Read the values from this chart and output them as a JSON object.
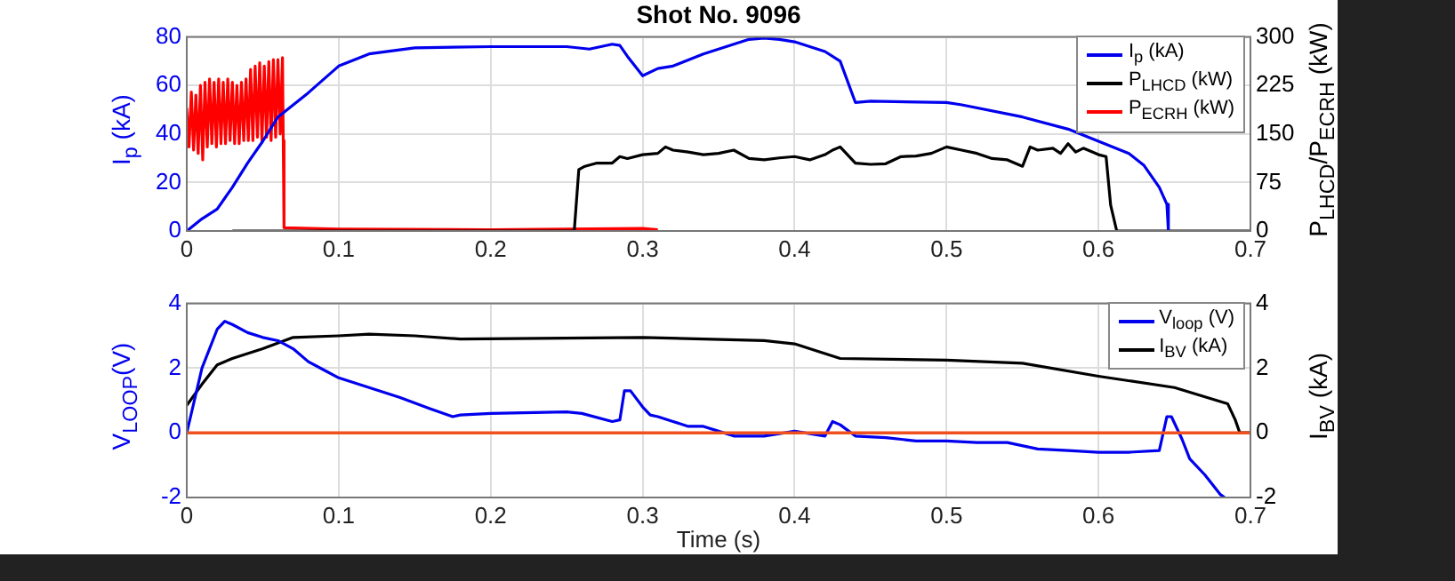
{
  "chart_data": [
    {
      "type": "line",
      "title": "Shot No. 9096",
      "ylabel": "I$_{p}$ (kA)",
      "y2label": "P$_{LHCD}$/P$_{ECRH}$ (kW)",
      "xlim": [
        0,
        0.7
      ],
      "xticks": [
        0,
        0.1,
        0.2,
        0.3,
        0.4,
        0.5,
        0.6,
        0.7
      ],
      "ylim": [
        0,
        80
      ],
      "yticks": [
        0,
        20,
        40,
        60,
        80
      ],
      "y2lim": [
        0,
        300
      ],
      "y2ticks": [
        0,
        75,
        150,
        225,
        300
      ],
      "grid": true,
      "legend": "top right",
      "series": [
        {
          "name": "I$_{p}$ (kA)",
          "color": "#0000ee",
          "x": [
            0,
            0.01,
            0.02,
            0.03,
            0.04,
            0.05,
            0.06,
            0.08,
            0.1,
            0.12,
            0.15,
            0.2,
            0.25,
            0.265,
            0.28,
            0.285,
            0.29,
            0.3,
            0.31,
            0.32,
            0.34,
            0.36,
            0.37,
            0.38,
            0.39,
            0.4,
            0.42,
            0.43,
            0.44,
            0.45,
            0.5,
            0.51,
            0.55,
            0.58,
            0.6,
            0.62,
            0.63,
            0.64,
            0.645,
            0.646
          ],
          "values": [
            0,
            5,
            9,
            18,
            28,
            37,
            47,
            57,
            68,
            73,
            75.5,
            76,
            76,
            75,
            77,
            76.5,
            72,
            64,
            67,
            68,
            73,
            77,
            79,
            79.5,
            79,
            78,
            74,
            70,
            53,
            53.5,
            53,
            52,
            47,
            42,
            37,
            32,
            27,
            18,
            11,
            0
          ]
        },
        {
          "name": "P$_{LHCD}$ (kW)",
          "color": "#000000",
          "axis": "y2",
          "x": [
            0.03,
            0.255,
            0.258,
            0.262,
            0.27,
            0.28,
            0.285,
            0.29,
            0.3,
            0.31,
            0.315,
            0.32,
            0.33,
            0.34,
            0.35,
            0.36,
            0.37,
            0.38,
            0.39,
            0.4,
            0.41,
            0.42,
            0.425,
            0.43,
            0.44,
            0.45,
            0.46,
            0.47,
            0.48,
            0.49,
            0.5,
            0.51,
            0.52,
            0.53,
            0.54,
            0.55,
            0.555,
            0.56,
            0.57,
            0.575,
            0.58,
            0.585,
            0.59,
            0.6,
            0.605,
            0.608,
            0.612,
            0.7
          ],
          "values": [
            0,
            0,
            95,
            100,
            105,
            105,
            115,
            112,
            118,
            120,
            130,
            125,
            122,
            118,
            120,
            125,
            112,
            110,
            113,
            115,
            110,
            118,
            125,
            130,
            105,
            103,
            104,
            115,
            116,
            120,
            130,
            125,
            120,
            112,
            110,
            100,
            130,
            125,
            128,
            120,
            135,
            122,
            128,
            118,
            115,
            40,
            0,
            0
          ]
        },
        {
          "name": "P$_{ECRH}$ (kW)",
          "color": "#ff0000",
          "axis": "y2",
          "x": [
            0,
            0.0015,
            0.003,
            0.0045,
            0.006,
            0.0075,
            0.009,
            0.0105,
            0.012,
            0.0135,
            0.015,
            0.0165,
            0.018,
            0.0195,
            0.021,
            0.0225,
            0.024,
            0.0255,
            0.027,
            0.0285,
            0.03,
            0.0315,
            0.033,
            0.0345,
            0.036,
            0.0375,
            0.039,
            0.0405,
            0.042,
            0.0435,
            0.045,
            0.0465,
            0.048,
            0.0495,
            0.051,
            0.0525,
            0.054,
            0.0555,
            0.057,
            0.0585,
            0.06,
            0.0615,
            0.063,
            0.0635,
            0.064,
            0.1,
            0.2,
            0.3,
            0.31
          ],
          "values": [
            190,
            130,
            215,
            125,
            210,
            120,
            225,
            110,
            230,
            130,
            235,
            135,
            230,
            130,
            235,
            135,
            230,
            135,
            235,
            140,
            230,
            135,
            225,
            135,
            230,
            140,
            235,
            140,
            250,
            140,
            255,
            145,
            260,
            140,
            255,
            145,
            262,
            140,
            265,
            145,
            265,
            150,
            268,
            140,
            5,
            3,
            2,
            4,
            2
          ]
        }
      ]
    },
    {
      "type": "line",
      "xlabel": "Time (s)",
      "ylabel": "V$_{LOOP}$(V)",
      "y2label": "I$_{BV}$ (kA)",
      "xlim": [
        0,
        0.7
      ],
      "xticks": [
        0,
        0.1,
        0.2,
        0.3,
        0.4,
        0.5,
        0.6,
        0.7
      ],
      "ylim": [
        -2,
        4
      ],
      "yticks": [
        -2,
        0,
        2,
        4
      ],
      "y2lim": [
        -2,
        4
      ],
      "y2ticks": [
        -2,
        0,
        2,
        4
      ],
      "grid": true,
      "legend": "top right",
      "ref_lines": [
        {
          "axis": "y",
          "value": 0,
          "color": "#f05020"
        }
      ],
      "series": [
        {
          "name": "V$_{loop}$ (V)",
          "color": "#0000ee",
          "x": [
            0,
            0.01,
            0.02,
            0.025,
            0.03,
            0.04,
            0.05,
            0.06,
            0.07,
            0.08,
            0.09,
            0.1,
            0.12,
            0.14,
            0.16,
            0.175,
            0.18,
            0.2,
            0.25,
            0.26,
            0.28,
            0.285,
            0.288,
            0.292,
            0.3,
            0.305,
            0.31,
            0.32,
            0.33,
            0.34,
            0.35,
            0.36,
            0.38,
            0.4,
            0.42,
            0.425,
            0.43,
            0.44,
            0.46,
            0.48,
            0.5,
            0.52,
            0.54,
            0.56,
            0.58,
            0.6,
            0.62,
            0.64,
            0.645,
            0.648,
            0.655,
            0.66,
            0.67,
            0.68,
            0.683
          ],
          "values": [
            0,
            2,
            3.2,
            3.45,
            3.35,
            3.1,
            2.95,
            2.85,
            2.6,
            2.2,
            1.95,
            1.7,
            1.4,
            1.1,
            0.75,
            0.5,
            0.55,
            0.6,
            0.65,
            0.6,
            0.35,
            0.4,
            1.3,
            1.3,
            0.8,
            0.55,
            0.5,
            0.35,
            0.2,
            0.2,
            0.05,
            -0.1,
            -0.1,
            0.05,
            -0.1,
            0.35,
            0.25,
            -0.1,
            -0.15,
            -0.25,
            -0.25,
            -0.3,
            -0.3,
            -0.5,
            -0.55,
            -0.6,
            -0.6,
            -0.55,
            0.5,
            0.5,
            -0.2,
            -0.8,
            -1.3,
            -1.9,
            -2
          ]
        },
        {
          "name": "I$_{BV}$ (kA)",
          "color": "#000000",
          "axis": "y2",
          "x": [
            0,
            0.01,
            0.02,
            0.03,
            0.05,
            0.07,
            0.1,
            0.12,
            0.15,
            0.18,
            0.3,
            0.38,
            0.4,
            0.42,
            0.43,
            0.5,
            0.55,
            0.6,
            0.65,
            0.685,
            0.69,
            0.693,
            0.7
          ],
          "values": [
            0.85,
            1.5,
            2.1,
            2.3,
            2.6,
            2.95,
            3,
            3.05,
            3,
            2.9,
            2.95,
            2.85,
            2.75,
            2.45,
            2.3,
            2.25,
            2.15,
            1.75,
            1.4,
            0.9,
            0.4,
            0,
            0
          ]
        }
      ]
    }
  ]
}
